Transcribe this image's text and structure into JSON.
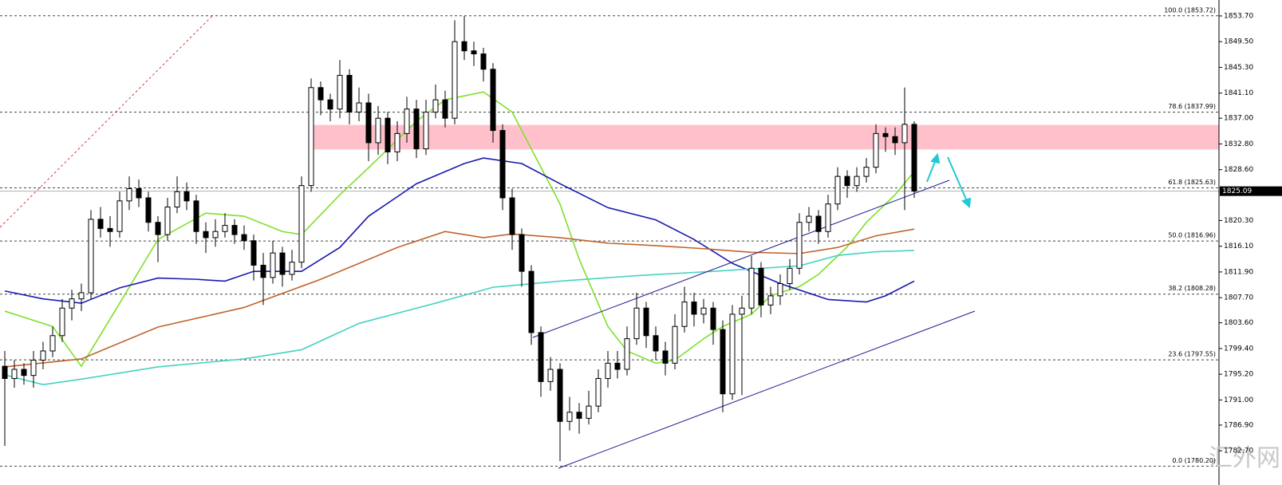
{
  "chart_data": {
    "type": "candlestick",
    "ylim": [
      1779.2,
      1856.3
    ],
    "yticks": [
      {
        "value": 1853.7,
        "label": "1853.70"
      },
      {
        "value": 1849.5,
        "label": "1849.50"
      },
      {
        "value": 1845.3,
        "label": "1845.30"
      },
      {
        "value": 1841.1,
        "label": "1841.10"
      },
      {
        "value": 1837.0,
        "label": "1837.00"
      },
      {
        "value": 1832.8,
        "label": "1832.80"
      },
      {
        "value": 1828.6,
        "label": "1828.60"
      },
      {
        "value": 1820.3,
        "label": "1820.30"
      },
      {
        "value": 1816.1,
        "label": "1816.10"
      },
      {
        "value": 1811.9,
        "label": "1811.90"
      },
      {
        "value": 1807.7,
        "label": "1807.70"
      },
      {
        "value": 1803.6,
        "label": "1803.60"
      },
      {
        "value": 1799.4,
        "label": "1799.40"
      },
      {
        "value": 1795.2,
        "label": "1795.20"
      },
      {
        "value": 1791.0,
        "label": "1791.00"
      },
      {
        "value": 1786.9,
        "label": "1786.90"
      },
      {
        "value": 1782.7,
        "label": "1782.70"
      }
    ],
    "current_price": 1825.09,
    "zone": [
      1831.9,
      1835.9
    ],
    "fib_levels": [
      {
        "value": 1853.72,
        "label": "100.0 (1853.72)"
      },
      {
        "value": 1837.99,
        "label": "78.6 (1837.99)"
      },
      {
        "value": 1825.63,
        "label": "61.8 (1825.63)"
      },
      {
        "value": 1816.96,
        "label": "50.0 (1816.96)"
      },
      {
        "value": 1808.28,
        "label": "38.2 (1808.28)"
      },
      {
        "value": 1797.55,
        "label": "23.6 (1797.55)"
      },
      {
        "value": 1780.2,
        "label": "0.0 (1780.20)"
      }
    ],
    "watermark": "汇外网",
    "candles": [
      [
        1796.5,
        1799.0,
        1783.5,
        1794.5
      ],
      [
        1794.5,
        1797.5,
        1793.0,
        1796.0
      ],
      [
        1796.0,
        1797.0,
        1793.5,
        1795.0
      ],
      [
        1795.0,
        1799.0,
        1793.0,
        1797.5
      ],
      [
        1797.5,
        1800.5,
        1796.0,
        1799.0
      ],
      [
        1799.0,
        1803.0,
        1798.0,
        1801.5
      ],
      [
        1801.5,
        1807.5,
        1800.5,
        1806.0
      ],
      [
        1806.0,
        1809.0,
        1804.0,
        1807.5
      ],
      [
        1807.5,
        1810.0,
        1805.5,
        1808.5
      ],
      [
        1808.5,
        1822.0,
        1807.5,
        1820.5
      ],
      [
        1820.5,
        1822.5,
        1817.5,
        1819.0
      ],
      [
        1819.0,
        1821.0,
        1816.0,
        1818.5
      ],
      [
        1818.5,
        1825.0,
        1817.5,
        1823.5
      ],
      [
        1823.5,
        1827.5,
        1822.0,
        1825.5
      ],
      [
        1825.5,
        1827.0,
        1822.5,
        1824.0
      ],
      [
        1824.0,
        1825.0,
        1818.5,
        1820.0
      ],
      [
        1820.0,
        1821.0,
        1813.5,
        1818.0
      ],
      [
        1818.0,
        1824.0,
        1817.0,
        1822.5
      ],
      [
        1822.5,
        1827.5,
        1821.5,
        1825.0
      ],
      [
        1825.0,
        1826.5,
        1822.0,
        1823.5
      ],
      [
        1823.5,
        1824.5,
        1816.5,
        1818.5
      ],
      [
        1818.5,
        1820.0,
        1815.0,
        1817.5
      ],
      [
        1817.5,
        1820.5,
        1816.0,
        1818.5
      ],
      [
        1818.5,
        1821.5,
        1817.5,
        1819.5
      ],
      [
        1819.5,
        1820.5,
        1816.5,
        1818.0
      ],
      [
        1818.0,
        1819.5,
        1815.5,
        1817.0
      ],
      [
        1817.0,
        1818.0,
        1810.5,
        1813.0
      ],
      [
        1813.0,
        1815.0,
        1806.5,
        1811.0
      ],
      [
        1811.0,
        1817.0,
        1810.0,
        1815.0
      ],
      [
        1815.0,
        1816.0,
        1809.5,
        1811.5
      ],
      [
        1811.5,
        1815.5,
        1810.5,
        1813.5
      ],
      [
        1813.5,
        1827.5,
        1812.5,
        1826.0
      ],
      [
        1826.0,
        1843.5,
        1825.0,
        1842.0
      ],
      [
        1842.0,
        1843.0,
        1837.5,
        1840.0
      ],
      [
        1840.0,
        1841.0,
        1836.5,
        1838.5
      ],
      [
        1838.5,
        1846.5,
        1837.0,
        1844.0
      ],
      [
        1844.0,
        1845.0,
        1836.0,
        1838.0
      ],
      [
        1838.0,
        1842.0,
        1836.5,
        1839.5
      ],
      [
        1839.5,
        1841.0,
        1830.0,
        1833.0
      ],
      [
        1833.0,
        1839.0,
        1831.0,
        1837.0
      ],
      [
        1837.0,
        1838.0,
        1829.5,
        1831.5
      ],
      [
        1831.5,
        1836.5,
        1830.0,
        1834.5
      ],
      [
        1834.5,
        1840.5,
        1833.0,
        1838.5
      ],
      [
        1838.5,
        1840.0,
        1830.5,
        1832.0
      ],
      [
        1832.0,
        1840.0,
        1831.0,
        1838.0
      ],
      [
        1838.0,
        1842.5,
        1837.0,
        1840.0
      ],
      [
        1840.0,
        1841.5,
        1835.5,
        1837.0
      ],
      [
        1837.0,
        1853.0,
        1836.0,
        1849.5
      ],
      [
        1849.5,
        1853.7,
        1846.5,
        1848.0
      ],
      [
        1848.0,
        1849.5,
        1845.5,
        1847.5
      ],
      [
        1847.5,
        1848.5,
        1843.0,
        1845.0
      ],
      [
        1845.0,
        1846.0,
        1833.0,
        1835.0
      ],
      [
        1835.0,
        1836.0,
        1822.0,
        1824.0
      ],
      [
        1824.0,
        1825.5,
        1815.5,
        1818.0
      ],
      [
        1818.0,
        1819.0,
        1809.5,
        1812.0
      ],
      [
        1812.0,
        1813.0,
        1800.0,
        1802.0
      ],
      [
        1802.0,
        1803.0,
        1791.5,
        1794.0
      ],
      [
        1794.0,
        1798.0,
        1792.5,
        1796.0
      ],
      [
        1796.0,
        1797.0,
        1781.0,
        1787.5
      ],
      [
        1787.5,
        1791.5,
        1786.0,
        1789.0
      ],
      [
        1789.0,
        1790.5,
        1785.5,
        1788.0
      ],
      [
        1788.0,
        1792.5,
        1787.0,
        1790.0
      ],
      [
        1790.0,
        1796.0,
        1789.0,
        1794.5
      ],
      [
        1794.5,
        1799.0,
        1793.0,
        1797.0
      ],
      [
        1797.0,
        1799.0,
        1794.5,
        1796.0
      ],
      [
        1796.0,
        1803.0,
        1795.0,
        1801.0
      ],
      [
        1801.0,
        1808.5,
        1800.0,
        1806.0
      ],
      [
        1806.0,
        1807.0,
        1799.5,
        1801.5
      ],
      [
        1801.5,
        1803.0,
        1797.5,
        1799.0
      ],
      [
        1799.0,
        1800.5,
        1795.0,
        1797.0
      ],
      [
        1797.0,
        1805.0,
        1796.0,
        1803.0
      ],
      [
        1803.0,
        1809.5,
        1802.0,
        1807.0
      ],
      [
        1807.0,
        1808.5,
        1803.0,
        1805.0
      ],
      [
        1805.0,
        1807.5,
        1803.5,
        1806.0
      ],
      [
        1806.0,
        1807.0,
        1800.0,
        1802.5
      ],
      [
        1802.5,
        1804.0,
        1789.0,
        1792.0
      ],
      [
        1792.0,
        1806.5,
        1791.0,
        1805.0
      ],
      [
        1805.0,
        1808.0,
        1791.8,
        1806.0
      ],
      [
        1806.0,
        1814.5,
        1805.0,
        1812.5
      ],
      [
        1812.5,
        1813.5,
        1804.5,
        1806.5
      ],
      [
        1806.5,
        1809.5,
        1805.0,
        1808.0
      ],
      [
        1808.0,
        1811.5,
        1806.5,
        1810.0
      ],
      [
        1810.0,
        1814.0,
        1809.0,
        1812.5
      ],
      [
        1812.5,
        1821.5,
        1811.5,
        1820.0
      ],
      [
        1820.0,
        1822.5,
        1818.5,
        1821.0
      ],
      [
        1821.0,
        1822.0,
        1816.5,
        1818.5
      ],
      [
        1818.5,
        1824.5,
        1817.5,
        1823.0
      ],
      [
        1823.0,
        1829.0,
        1822.0,
        1827.5
      ],
      [
        1827.5,
        1828.5,
        1824.0,
        1826.0
      ],
      [
        1826.0,
        1829.0,
        1825.0,
        1827.5
      ],
      [
        1827.5,
        1830.5,
        1826.5,
        1829.0
      ],
      [
        1829.0,
        1836.0,
        1828.0,
        1834.5
      ],
      [
        1834.5,
        1835.5,
        1831.5,
        1834.0
      ],
      [
        1834.0,
        1835.5,
        1831.0,
        1833.0
      ],
      [
        1833.0,
        1842.0,
        1822.0,
        1836.0
      ],
      [
        1836.0,
        1836.5,
        1824.0,
        1825.09
      ]
    ],
    "series": [
      {
        "color": "#7fe02a",
        "x": [
          0,
          5,
          8,
          12,
          16,
          21,
          25,
          29,
          31,
          35,
          38,
          43,
          46,
          50,
          53,
          55,
          58,
          60,
          63,
          65,
          68,
          70,
          73,
          75,
          78,
          80,
          83,
          85,
          88,
          90,
          93,
          95
        ],
        "values": [
          1805.5,
          1803,
          1796.5,
          1806.8,
          1817.2,
          1821.5,
          1821,
          1818.5,
          1818,
          1824.5,
          1828.9,
          1836.5,
          1840,
          1841.3,
          1838,
          1832,
          1823,
          1814,
          1803,
          1799,
          1797,
          1797.5,
          1801,
          1803,
          1805,
          1808,
          1809.5,
          1811.5,
          1816,
          1820,
          1824.5,
          1828.3
        ]
      },
      {
        "color": "#1a1ab0",
        "x": [
          0,
          4,
          8,
          12,
          16,
          20,
          23,
          26,
          31,
          35,
          38,
          43,
          48,
          50,
          54,
          58,
          63,
          68,
          72,
          76,
          81,
          86,
          90,
          92,
          95
        ],
        "values": [
          1808.8,
          1807.5,
          1806.8,
          1809.3,
          1810.9,
          1810.7,
          1810.4,
          1812,
          1812,
          1815.9,
          1821,
          1826.3,
          1829.6,
          1830.5,
          1829.6,
          1826.3,
          1822.4,
          1820.4,
          1817.2,
          1813.3,
          1810,
          1807.4,
          1807,
          1808,
          1810.4
        ]
      },
      {
        "color": "#c0642c",
        "x": [
          0,
          8,
          16,
          25,
          33,
          41,
          46,
          50,
          53,
          58,
          63,
          68,
          73,
          78,
          83,
          87,
          91,
          95
        ],
        "values": [
          1796.4,
          1797.7,
          1802.9,
          1806.1,
          1810.7,
          1815.9,
          1818.5,
          1817.5,
          1818.1,
          1817.5,
          1816.6,
          1816.2,
          1815.7,
          1815.1,
          1814.9,
          1815.9,
          1817.8,
          1818.9
        ]
      },
      {
        "color": "#45d2c2",
        "x": [
          0,
          4,
          8,
          16,
          25,
          31,
          37,
          45,
          51,
          58,
          66,
          74,
          83,
          87,
          91,
          95
        ],
        "values": [
          1795.1,
          1793.5,
          1794.4,
          1796.4,
          1797.7,
          1799.2,
          1803.5,
          1806.8,
          1809.4,
          1810.4,
          1811.3,
          1812,
          1812.9,
          1814.6,
          1815.2,
          1815.4
        ]
      }
    ]
  }
}
